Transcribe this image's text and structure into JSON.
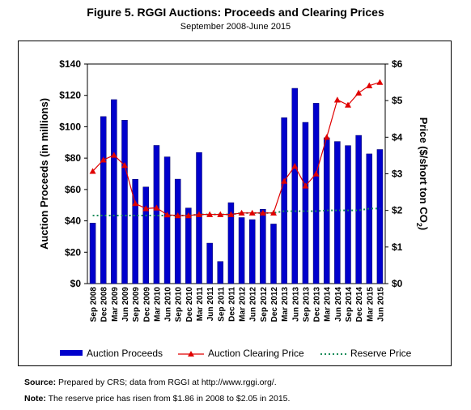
{
  "figure": {
    "title": "Figure 5. RGGI Auctions: Proceeds and Clearing Prices",
    "subtitle": "September 2008-June 2015"
  },
  "chart_data": {
    "type": "bar",
    "categories": [
      "Sep 2008",
      "Dec 2008",
      "Mar 2009",
      "Jun 2009",
      "Sep 2009",
      "Dec 2009",
      "Mar 2010",
      "Jun 2010",
      "Sep 2010",
      "Dec 2010",
      "Mar 2011",
      "Jun 2011",
      "Sep 2011",
      "Dec 2011",
      "Mar 2012",
      "Jun 2012",
      "Sep 2012",
      "Dec 2012",
      "Mar 2013",
      "Jun 2013",
      "Sep 2013",
      "Dec 2013",
      "Mar 2014",
      "Jun 2014",
      "Sep 2014",
      "Dec 2014",
      "Mar 2015",
      "Jun 2015"
    ],
    "series": [
      {
        "name": "Auction Proceeds",
        "type": "bar",
        "axis": "left",
        "color": "#0000cc",
        "values": [
          38.6,
          106.5,
          117.3,
          104.2,
          66.5,
          61.6,
          88.1,
          80.8,
          66.6,
          48.2,
          83.6,
          25.8,
          14.1,
          51.6,
          42.1,
          40.8,
          47.4,
          38.0,
          105.8,
          124.5,
          102.8,
          115.0,
          93.0,
          90.6,
          88.0,
          94.5,
          82.7,
          85.5
        ]
      },
      {
        "name": "Auction Clearing Price",
        "type": "line",
        "axis": "right",
        "color": "#e00000",
        "values": [
          3.07,
          3.38,
          3.51,
          3.23,
          2.19,
          2.05,
          2.07,
          1.88,
          1.86,
          1.86,
          1.89,
          1.89,
          1.89,
          1.89,
          1.93,
          1.93,
          1.93,
          1.93,
          2.8,
          3.21,
          2.67,
          3.0,
          4.0,
          5.02,
          4.88,
          5.21,
          5.41,
          5.5
        ]
      },
      {
        "name": "Reserve Price",
        "type": "line",
        "axis": "right",
        "color": "#1a8c5a",
        "style": "dotted",
        "values": [
          1.86,
          1.86,
          1.86,
          1.86,
          1.86,
          1.86,
          1.86,
          1.86,
          1.86,
          1.86,
          1.89,
          1.89,
          1.89,
          1.89,
          1.93,
          1.93,
          1.93,
          1.93,
          1.98,
          1.98,
          1.98,
          1.98,
          2.0,
          2.0,
          2.0,
          2.0,
          2.05,
          2.05
        ]
      }
    ],
    "ylabel_left": "Auction Proceeds (in millions)",
    "ylabel_right_main": "Price ($/short ton CO",
    "ylabel_right_sub": "2",
    "ylabel_right_end": ")",
    "ylim_left": [
      0,
      140
    ],
    "ylim_right": [
      0,
      6
    ],
    "yticks_left": [
      "$0",
      "$20",
      "$40",
      "$60",
      "$80",
      "$100",
      "$120",
      "$140"
    ],
    "yticks_right": [
      "$0",
      "$1",
      "$2",
      "$3",
      "$4",
      "$5",
      "$6"
    ],
    "grid": false,
    "legend_position": "bottom"
  },
  "notes": {
    "source_label": "Source:",
    "source_text": " Prepared by CRS; data from RGGI at http://www.rggi.org/.",
    "note_label": "Note:",
    "note_text": " The reserve price has risen from $1.86 in 2008 to $2.05 in 2015."
  }
}
